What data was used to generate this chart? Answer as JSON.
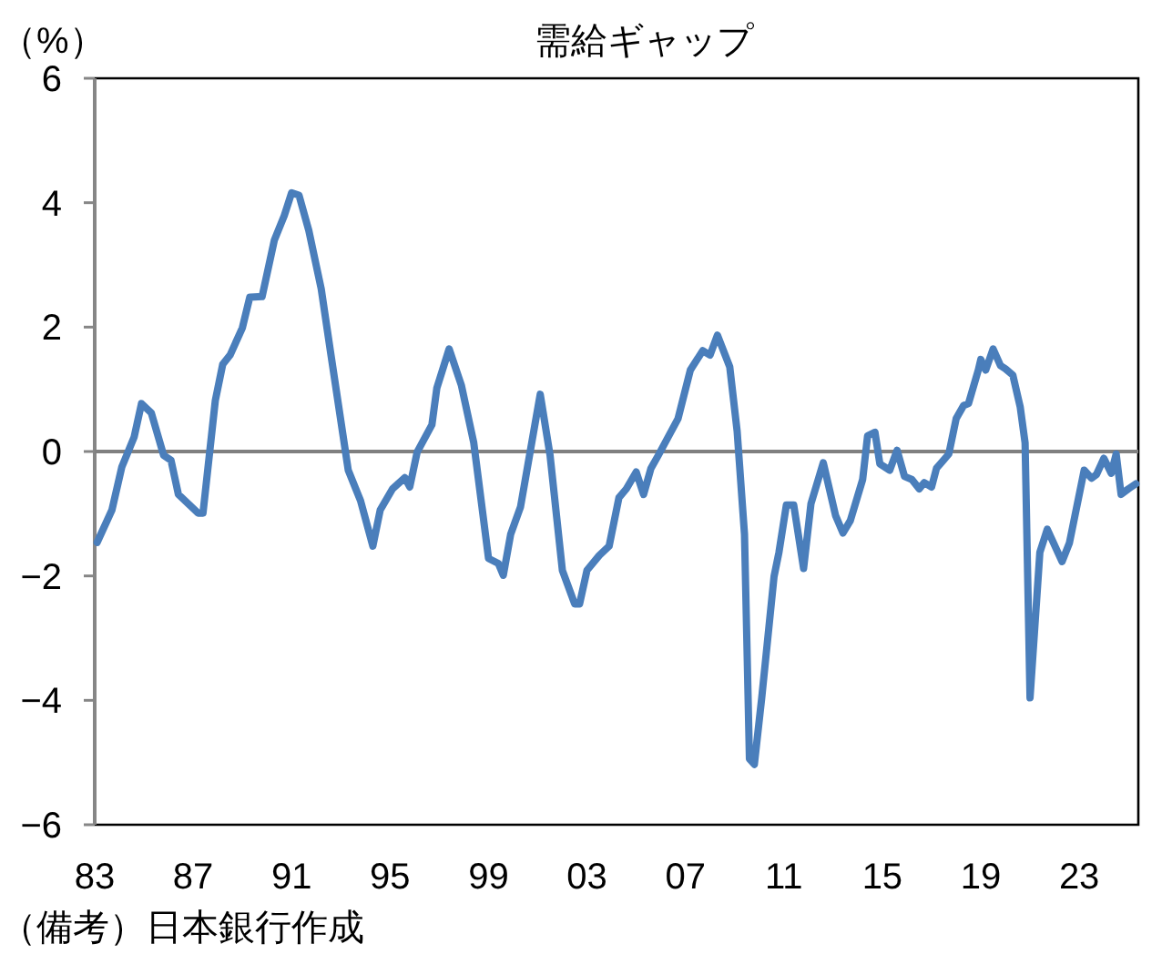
{
  "chart_data": {
    "type": "line",
    "title": "需給ギャップ",
    "ylabel": "（%）",
    "annotations": [
      "（備考）日本銀行作成"
    ],
    "xlim": [
      1983,
      2025.4
    ],
    "ylim": [
      -6,
      6
    ],
    "yticks": [
      -6,
      -4,
      -2,
      0,
      2,
      4,
      6
    ],
    "xticks": [
      {
        "value": 1983,
        "label": "83"
      },
      {
        "value": 1987,
        "label": "87"
      },
      {
        "value": 1991,
        "label": "91"
      },
      {
        "value": 1995,
        "label": "95"
      },
      {
        "value": 1999,
        "label": "99"
      },
      {
        "value": 2003,
        "label": "03"
      },
      {
        "value": 2007,
        "label": "07"
      },
      {
        "value": 2011,
        "label": "11"
      },
      {
        "value": 2015,
        "label": "15"
      },
      {
        "value": 2019,
        "label": "19"
      },
      {
        "value": 2023,
        "label": "23"
      }
    ],
    "ref_lines": [
      {
        "axis": "y",
        "value": 0,
        "color": "#808080"
      }
    ],
    "grid": false,
    "series": [
      {
        "color": "#4a7ebb",
        "x": [
          1983.1,
          1983.7,
          1984.1,
          1984.6,
          1984.9,
          1985.3,
          1985.8,
          1986.1,
          1986.4,
          1987.2,
          1987.4,
          1987.9,
          1988.2,
          1988.5,
          1989.0,
          1989.3,
          1989.8,
          1990.3,
          1990.7,
          1991.0,
          1991.3,
          1991.7,
          1992.2,
          1992.6,
          1993.3,
          1993.8,
          1994.3,
          1994.6,
          1995.1,
          1995.6,
          1995.8,
          1996.1,
          1996.7,
          1996.9,
          1997.4,
          1997.9,
          1998.4,
          1999.0,
          1999.4,
          1999.6,
          1999.9,
          2000.3,
          2001.1,
          2001.5,
          2002.0,
          2002.5,
          2002.7,
          2003.0,
          2003.5,
          2003.9,
          2004.3,
          2004.6,
          2005.0,
          2005.3,
          2005.6,
          2005.9,
          2006.7,
          2007.2,
          2007.7,
          2008.0,
          2008.3,
          2008.8,
          2009.1,
          2009.4,
          2009.6,
          2009.8,
          2010.1,
          2010.6,
          2010.8,
          2011.1,
          2011.4,
          2011.8,
          2012.1,
          2012.6,
          2013.1,
          2013.4,
          2013.7,
          2014.2,
          2014.4,
          2014.7,
          2014.9,
          2015.3,
          2015.6,
          2015.9,
          2016.2,
          2016.5,
          2016.7,
          2017.0,
          2017.2,
          2017.7,
          2018.0,
          2018.3,
          2018.5,
          2018.9,
          2019.0,
          2019.2,
          2019.5,
          2019.8,
          2020.0,
          2020.3,
          2020.6,
          2020.8,
          2021.0,
          2021.4,
          2021.7,
          2022.3,
          2022.6,
          2023.2,
          2023.5,
          2023.7,
          2024.0,
          2024.3,
          2024.5,
          2024.7,
          2025.0,
          2025.3
        ],
        "values": [
          -1.46,
          -0.94,
          -0.25,
          0.23,
          0.77,
          0.62,
          -0.06,
          -0.14,
          -0.69,
          -0.99,
          -0.99,
          0.82,
          1.4,
          1.55,
          1.99,
          2.48,
          2.49,
          3.4,
          3.79,
          4.16,
          4.12,
          3.55,
          2.62,
          1.55,
          -0.3,
          -0.79,
          -1.52,
          -0.94,
          -0.6,
          -0.42,
          -0.57,
          -0.01,
          0.43,
          1.02,
          1.65,
          1.06,
          0.14,
          -1.72,
          -1.8,
          -1.99,
          -1.33,
          -0.89,
          0.92,
          -0.06,
          -1.91,
          -2.45,
          -2.45,
          -1.91,
          -1.67,
          -1.52,
          -0.74,
          -0.6,
          -0.33,
          -0.69,
          -0.27,
          -0.06,
          0.53,
          1.31,
          1.62,
          1.55,
          1.87,
          1.36,
          0.33,
          -1.33,
          -4.94,
          -5.03,
          -3.96,
          -2.01,
          -1.62,
          -0.86,
          -0.86,
          -1.88,
          -0.84,
          -0.18,
          -1.03,
          -1.31,
          -1.11,
          -0.45,
          0.25,
          0.31,
          -0.2,
          -0.3,
          0.02,
          -0.4,
          -0.45,
          -0.6,
          -0.5,
          -0.57,
          -0.27,
          -0.04,
          0.53,
          0.74,
          0.77,
          1.31,
          1.48,
          1.31,
          1.65,
          1.38,
          1.33,
          1.23,
          0.72,
          0.14,
          -3.96,
          -1.62,
          -1.25,
          -1.77,
          -1.47,
          -0.3,
          -0.43,
          -0.37,
          -0.11,
          -0.35,
          -0.04,
          -0.69,
          -0.6,
          -0.52
        ]
      }
    ]
  }
}
